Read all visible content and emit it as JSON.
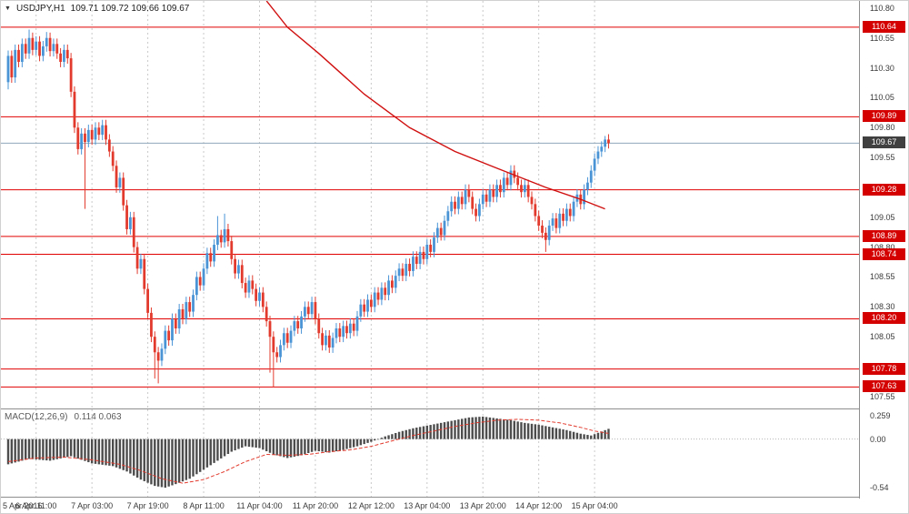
{
  "header": {
    "marker": "▼",
    "symbol_label": "USDJPY,H1",
    "ohlc": "109.71 109.72 109.66 109.67"
  },
  "macd_header": {
    "label": "MACD(12,26,9)",
    "values": "0.114 0.063"
  },
  "colors": {
    "background": "#ffffff",
    "up_candle": "#4a94d6",
    "down_candle": "#e23b2e",
    "level_line": "#e10000",
    "badge_bg": "#d40000",
    "badge_text": "#ffffff",
    "current_price_line": "#90a8bc",
    "current_badge_bg": "#404040",
    "grid": "#c9c9c9",
    "histogram": "#4d4d4d",
    "signal_line": "#e23b2e",
    "trendline": "#d01010",
    "separator": "#8e8e8e",
    "axis_text": "#3a3a3a"
  },
  "chart_data": {
    "type": "candlestick",
    "title": "USDJPY,H1",
    "symbol": "USDJPY",
    "timeframe": "H1",
    "last_ohlc": {
      "open": 109.71,
      "high": 109.72,
      "low": 109.66,
      "close": 109.67
    },
    "price_pane": {
      "ylim": [
        107.45,
        110.86
      ],
      "grid": "vertical-dashed",
      "axis_ticks": [
        "110.80",
        "110.55",
        "110.30",
        "110.05",
        "109.80",
        "109.55",
        "109.30",
        "109.05",
        "108.80",
        "108.55",
        "108.30",
        "108.05",
        "107.80",
        "107.55"
      ],
      "level_lines": [
        110.64,
        109.89,
        109.28,
        108.89,
        108.74,
        108.2,
        107.78,
        107.63
      ],
      "current_price": 109.67,
      "candles": {
        "first_open": 110.18,
        "wick_pad": 0.045,
        "closes": [
          110.4,
          110.22,
          110.45,
          110.35,
          110.5,
          110.42,
          110.55,
          110.45,
          110.52,
          110.4,
          110.48,
          110.55,
          110.44,
          110.5,
          110.42,
          110.35,
          110.45,
          110.38,
          110.1,
          109.8,
          109.62,
          109.75,
          109.68,
          109.78,
          109.7,
          109.8,
          109.74,
          109.82,
          109.7,
          109.6,
          109.48,
          109.3,
          109.38,
          109.15,
          108.95,
          109.05,
          108.8,
          108.62,
          108.7,
          108.45,
          108.25,
          108.05,
          107.92,
          107.85,
          107.95,
          108.1,
          108.02,
          108.2,
          108.12,
          108.28,
          108.2,
          108.34,
          108.26,
          108.4,
          108.55,
          108.48,
          108.62,
          108.75,
          108.68,
          108.82,
          108.9,
          108.84,
          108.95,
          108.85,
          108.7,
          108.58,
          108.65,
          108.5,
          108.42,
          108.52,
          108.45,
          108.35,
          108.42,
          108.3,
          108.18,
          108.05,
          107.92,
          107.88,
          107.98,
          108.08,
          108.0,
          108.1,
          108.18,
          108.12,
          108.22,
          108.3,
          108.24,
          108.34,
          108.2,
          108.08,
          107.98,
          108.06,
          107.96,
          108.04,
          108.12,
          108.05,
          108.14,
          108.08,
          108.16,
          108.1,
          108.22,
          108.32,
          108.26,
          108.36,
          108.3,
          108.42,
          108.36,
          108.46,
          108.4,
          108.52,
          108.46,
          108.56,
          108.62,
          108.56,
          108.66,
          108.6,
          108.72,
          108.66,
          108.76,
          108.7,
          108.82,
          108.76,
          108.88,
          108.96,
          108.9,
          109.02,
          109.1,
          109.18,
          109.12,
          109.22,
          109.16,
          109.28,
          109.22,
          109.12,
          109.06,
          109.16,
          109.24,
          109.18,
          109.28,
          109.22,
          109.32,
          109.26,
          109.38,
          109.32,
          109.44,
          109.38,
          109.32,
          109.26,
          109.32,
          109.22,
          109.16,
          109.06,
          108.98,
          108.92,
          108.86,
          108.98,
          109.04,
          108.96,
          109.08,
          109.02,
          109.12,
          109.06,
          109.18,
          109.24,
          109.16,
          109.28,
          109.34,
          109.44,
          109.54,
          109.6,
          109.64,
          109.7,
          109.67
        ],
        "wick_overrides": {
          "0": {
            "l": 110.12
          },
          "6": {
            "h": 110.62
          },
          "11": {
            "h": 110.6
          },
          "22": {
            "l": 109.12
          },
          "42": {
            "l": 107.7
          },
          "43": {
            "l": 107.66
          },
          "60": {
            "h": 109.06
          },
          "62": {
            "h": 109.08
          },
          "75": {
            "l": 107.75
          },
          "76": {
            "l": 107.63
          },
          "154": {
            "l": 108.76
          },
          "171": {
            "h": 109.73
          }
        }
      },
      "trendline_anchors": [
        [
          74,
          110.86
        ],
        [
          80,
          110.64
        ],
        [
          89,
          110.42
        ],
        [
          102,
          110.08
        ],
        [
          115,
          109.8
        ],
        [
          128,
          109.6
        ],
        [
          140,
          109.46
        ],
        [
          154,
          109.3
        ],
        [
          164,
          109.2
        ],
        [
          171,
          109.12
        ]
      ]
    },
    "macd_pane": {
      "ylim": [
        -0.64,
        0.33
      ],
      "axis_ticks": [
        "0.259",
        "0.00",
        "-0.54"
      ],
      "axis_tick_values": [
        0.259,
        0,
        -0.54
      ],
      "last_values": {
        "macd": 0.114,
        "signal": 0.063
      },
      "macd_anchors": [
        [
          0,
          -0.28
        ],
        [
          6,
          -0.22
        ],
        [
          12,
          -0.24
        ],
        [
          18,
          -0.19
        ],
        [
          24,
          -0.27
        ],
        [
          30,
          -0.3
        ],
        [
          34,
          -0.36
        ],
        [
          38,
          -0.45
        ],
        [
          42,
          -0.52
        ],
        [
          45,
          -0.54
        ],
        [
          48,
          -0.5
        ],
        [
          52,
          -0.44
        ],
        [
          56,
          -0.34
        ],
        [
          60,
          -0.24
        ],
        [
          64,
          -0.14
        ],
        [
          68,
          -0.08
        ],
        [
          72,
          -0.1
        ],
        [
          76,
          -0.17
        ],
        [
          80,
          -0.21
        ],
        [
          84,
          -0.18
        ],
        [
          88,
          -0.13
        ],
        [
          92,
          -0.15
        ],
        [
          96,
          -0.12
        ],
        [
          100,
          -0.08
        ],
        [
          104,
          -0.03
        ],
        [
          108,
          0.03
        ],
        [
          112,
          0.08
        ],
        [
          116,
          0.12
        ],
        [
          120,
          0.15
        ],
        [
          124,
          0.18
        ],
        [
          128,
          0.21
        ],
        [
          132,
          0.24
        ],
        [
          136,
          0.25
        ],
        [
          140,
          0.23
        ],
        [
          144,
          0.21
        ],
        [
          148,
          0.18
        ],
        [
          152,
          0.16
        ],
        [
          156,
          0.13
        ],
        [
          160,
          0.1
        ],
        [
          164,
          0.06
        ],
        [
          167,
          0.04
        ],
        [
          169,
          0.07
        ],
        [
          172,
          0.114
        ]
      ],
      "signal_anchors": [
        [
          0,
          -0.25
        ],
        [
          8,
          -0.21
        ],
        [
          16,
          -0.2
        ],
        [
          24,
          -0.23
        ],
        [
          32,
          -0.28
        ],
        [
          38,
          -0.35
        ],
        [
          44,
          -0.44
        ],
        [
          50,
          -0.49
        ],
        [
          56,
          -0.45
        ],
        [
          62,
          -0.36
        ],
        [
          68,
          -0.25
        ],
        [
          74,
          -0.17
        ],
        [
          80,
          -0.18
        ],
        [
          86,
          -0.17
        ],
        [
          92,
          -0.14
        ],
        [
          98,
          -0.12
        ],
        [
          104,
          -0.08
        ],
        [
          110,
          -0.02
        ],
        [
          116,
          0.04
        ],
        [
          122,
          0.09
        ],
        [
          128,
          0.14
        ],
        [
          134,
          0.18
        ],
        [
          140,
          0.21
        ],
        [
          146,
          0.22
        ],
        [
          152,
          0.21
        ],
        [
          158,
          0.18
        ],
        [
          164,
          0.13
        ],
        [
          168,
          0.09
        ],
        [
          172,
          0.063
        ]
      ]
    },
    "time_axis": {
      "labels": [
        "5 Apr 2016",
        "6 Apr 11:00",
        "7 Apr 03:00",
        "7 Apr 19:00",
        "8 Apr 11:00",
        "11 Apr 04:00",
        "11 Apr 20:00",
        "12 Apr 12:00",
        "13 Apr 04:00",
        "13 Apr 20:00",
        "14 Apr 12:00",
        "15 Apr 04:00"
      ],
      "grid_first_index": 8,
      "grid_step": 16
    }
  }
}
